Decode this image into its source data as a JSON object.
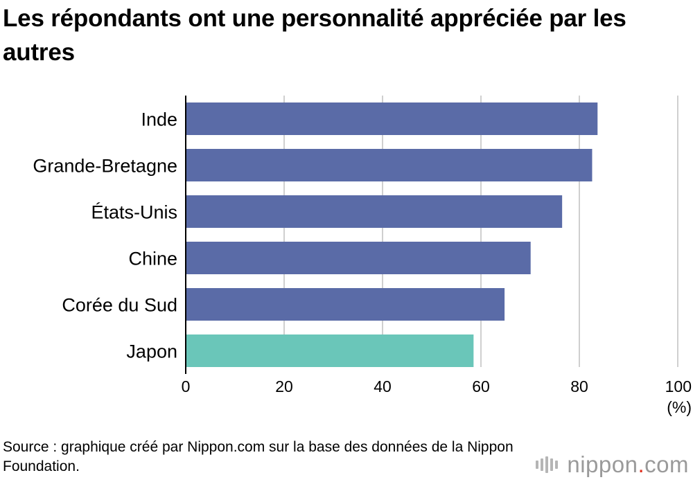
{
  "title": "Les répondants ont une personnalité appréciée par les autres",
  "source": "Source : graphique créé par Nippon.com sur la base des données de la Nippon Foundation.",
  "logo": {
    "name": "nippon",
    "dot": ".",
    "suffix": "com"
  },
  "colors": {
    "bar": "#5a6ba7",
    "highlight": "#6ac6b9",
    "grid": "#cfcfcf",
    "axis": "#000000"
  },
  "chart_data": {
    "type": "bar",
    "orientation": "horizontal",
    "categories": [
      "Inde",
      "Grande-Bretagne",
      "États-Unis",
      "Chine",
      "Corée du Sud",
      "Japon"
    ],
    "values": [
      83.7,
      82.6,
      76.5,
      70.1,
      64.8,
      58.5
    ],
    "highlight": "Japon",
    "xlim": [
      0,
      100
    ],
    "xticks": [
      0,
      20,
      40,
      60,
      80,
      100
    ],
    "unit": "(%)",
    "grid": true
  }
}
